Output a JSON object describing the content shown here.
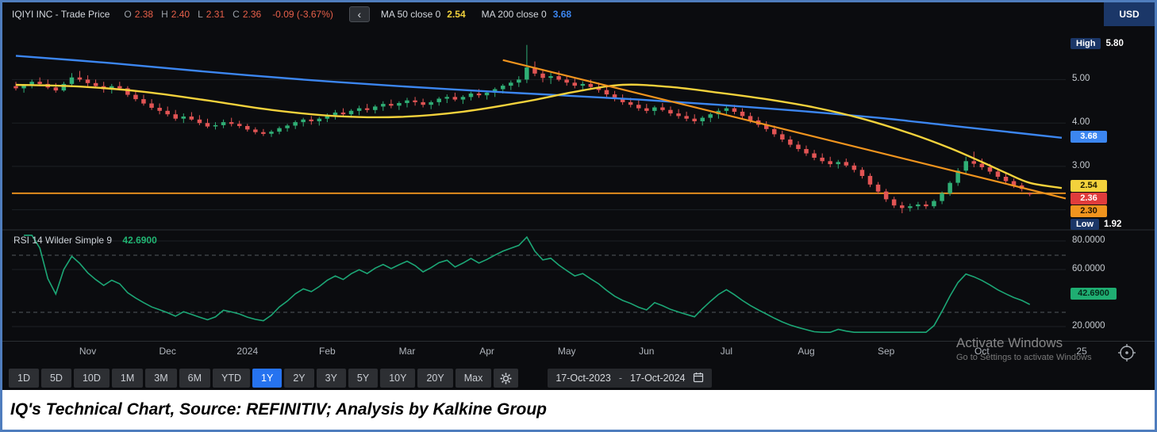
{
  "header": {
    "title": "IQIYI INC - Trade Price",
    "ohlc": {
      "o_label": "O",
      "o": "2.38",
      "h_label": "H",
      "h": "2.40",
      "l_label": "L",
      "l": "2.31",
      "c_label": "C",
      "c": "2.36",
      "change": "-0.09 (-3.67%)"
    },
    "back_chevron": "‹",
    "ma50_label": "MA 50 close 0",
    "ma50_value": "2.54",
    "ma200_label": "MA 200 close 0",
    "ma200_value": "3.68",
    "currency_badge": "USD"
  },
  "price_axis": {
    "high_label": "High",
    "high_text": "5.80",
    "high_value": 5.8,
    "low_label": "Low",
    "low_text": "1.92",
    "low_value": 1.92,
    "ticks": [
      {
        "text": "5.00",
        "value": 5.0
      },
      {
        "text": "4.00",
        "value": 4.0
      },
      {
        "text": "3.00",
        "value": 3.0
      }
    ],
    "badges": [
      {
        "name": "ma200-value-badge",
        "text": "3.68",
        "value": 3.68,
        "bg": "#3c86f0",
        "fg": "#ffffff"
      },
      {
        "name": "ma50-value-badge",
        "text": "2.54",
        "value": 2.54,
        "bg": "#f3d23c",
        "fg": "#1e1a00"
      },
      {
        "name": "last-price-badge",
        "text": "2.36",
        "value": 2.36,
        "bg": "#e03c3c",
        "fg": "#ffffff"
      },
      {
        "name": "trendline-value-badge",
        "text": "2.30",
        "value": 2.3,
        "bg": "#f0941e",
        "fg": "#1e1200"
      }
    ]
  },
  "rsi_panel": {
    "label": "RSI 14 Wilder Simple 9",
    "value": "42.6900",
    "badge": {
      "text": "42.6900",
      "value": 42.69,
      "bg": "#1fae72",
      "fg": "#062a1b"
    },
    "ticks": [
      {
        "text": "80.0000",
        "value": 80
      },
      {
        "text": "60.0000",
        "value": 60
      },
      {
        "text": "20.0000",
        "value": 20
      }
    ]
  },
  "watermark": {
    "line1": "Activate Windows",
    "line2": "Go to Settings to activate Windows"
  },
  "x_axis": {
    "labels": [
      {
        "text": "Nov",
        "i": 9
      },
      {
        "text": "Dec",
        "i": 19
      },
      {
        "text": "2024",
        "i": 29
      },
      {
        "text": "Feb",
        "i": 39
      },
      {
        "text": "Mar",
        "i": 49
      },
      {
        "text": "Apr",
        "i": 59
      },
      {
        "text": "May",
        "i": 69
      },
      {
        "text": "Jun",
        "i": 79
      },
      {
        "text": "Jul",
        "i": 89
      },
      {
        "text": "Aug",
        "i": 99
      },
      {
        "text": "Sep",
        "i": 109
      },
      {
        "text": "Oct",
        "i": 121
      },
      {
        "text": "25",
        "i": 133.5
      }
    ]
  },
  "toolbar": {
    "ranges": [
      "1D",
      "5D",
      "10D",
      "1M",
      "3M",
      "6M",
      "YTD",
      "1Y",
      "2Y",
      "3Y",
      "5Y",
      "10Y",
      "20Y",
      "Max"
    ],
    "selected": "1Y",
    "date_from": "17-Oct-2023",
    "date_separator": "-",
    "date_to": "17-Oct-2024"
  },
  "caption": {
    "text": "IQ's Technical Chart, Source: REFINITIV; Analysis by Kalkine Group"
  },
  "chart_data": {
    "type": "candlestick",
    "title": "IQIYI INC - Trade Price, 1Y daily with MA50, MA200, trendlines and RSI(14)",
    "currency": "USD",
    "ylim": [
      1.7,
      6.05
    ],
    "high": 5.8,
    "low": 1.92,
    "last_ohlc": {
      "open": 2.38,
      "high": 2.4,
      "low": 2.31,
      "close": 2.36,
      "change": -0.09,
      "change_pct": -3.67
    },
    "price_gridlines": [
      5,
      4,
      3,
      2
    ],
    "candles": [
      [
        4.85,
        4.95,
        4.75,
        4.8
      ],
      [
        4.8,
        4.9,
        4.7,
        4.88
      ],
      [
        4.88,
        5.0,
        4.8,
        4.95
      ],
      [
        4.95,
        5.05,
        4.85,
        4.9
      ],
      [
        4.9,
        5.0,
        4.78,
        4.82
      ],
      [
        4.82,
        4.92,
        4.7,
        4.75
      ],
      [
        4.75,
        4.95,
        4.72,
        4.9
      ],
      [
        4.9,
        5.15,
        4.85,
        5.05
      ],
      [
        5.05,
        5.2,
        4.95,
        5.0
      ],
      [
        5.0,
        5.1,
        4.85,
        4.92
      ],
      [
        4.92,
        5.0,
        4.8,
        4.85
      ],
      [
        4.85,
        4.95,
        4.7,
        4.78
      ],
      [
        4.78,
        4.9,
        4.68,
        4.85
      ],
      [
        4.85,
        4.95,
        4.75,
        4.8
      ],
      [
        4.8,
        4.85,
        4.6,
        4.65
      ],
      [
        4.65,
        4.75,
        4.5,
        4.55
      ],
      [
        4.55,
        4.65,
        4.4,
        4.45
      ],
      [
        4.45,
        4.55,
        4.3,
        4.35
      ],
      [
        4.35,
        4.45,
        4.2,
        4.28
      ],
      [
        4.28,
        4.38,
        4.15,
        4.2
      ],
      [
        4.2,
        4.3,
        4.05,
        4.1
      ],
      [
        4.1,
        4.22,
        4.0,
        4.15
      ],
      [
        4.15,
        4.25,
        4.05,
        4.08
      ],
      [
        4.08,
        4.18,
        3.95,
        4.0
      ],
      [
        4.0,
        4.1,
        3.88,
        3.92
      ],
      [
        3.92,
        4.02,
        3.85,
        3.95
      ],
      [
        3.95,
        4.08,
        3.88,
        4.02
      ],
      [
        4.02,
        4.12,
        3.92,
        3.98
      ],
      [
        3.98,
        4.05,
        3.88,
        3.93
      ],
      [
        3.93,
        3.98,
        3.8,
        3.85
      ],
      [
        3.85,
        3.9,
        3.74,
        3.79
      ],
      [
        3.79,
        3.86,
        3.7,
        3.75
      ],
      [
        3.75,
        3.84,
        3.68,
        3.8
      ],
      [
        3.8,
        3.92,
        3.74,
        3.88
      ],
      [
        3.88,
        3.98,
        3.8,
        3.94
      ],
      [
        3.94,
        4.06,
        3.86,
        4.02
      ],
      [
        4.02,
        4.12,
        3.92,
        4.08
      ],
      [
        4.08,
        4.16,
        3.96,
        4.04
      ],
      [
        4.04,
        4.14,
        3.94,
        4.1
      ],
      [
        4.1,
        4.22,
        4.02,
        4.18
      ],
      [
        4.18,
        4.3,
        4.08,
        4.24
      ],
      [
        4.24,
        4.34,
        4.14,
        4.2
      ],
      [
        4.2,
        4.32,
        4.12,
        4.28
      ],
      [
        4.28,
        4.4,
        4.18,
        4.34
      ],
      [
        4.34,
        4.44,
        4.24,
        4.3
      ],
      [
        4.3,
        4.42,
        4.22,
        4.38
      ],
      [
        4.38,
        4.5,
        4.28,
        4.44
      ],
      [
        4.44,
        4.54,
        4.34,
        4.4
      ],
      [
        4.4,
        4.5,
        4.3,
        4.46
      ],
      [
        4.46,
        4.58,
        4.36,
        4.52
      ],
      [
        4.52,
        4.6,
        4.4,
        4.48
      ],
      [
        4.48,
        4.56,
        4.36,
        4.42
      ],
      [
        4.42,
        4.52,
        4.32,
        4.48
      ],
      [
        4.48,
        4.6,
        4.4,
        4.56
      ],
      [
        4.56,
        4.66,
        4.46,
        4.6
      ],
      [
        4.6,
        4.7,
        4.5,
        4.54
      ],
      [
        4.54,
        4.64,
        4.44,
        4.6
      ],
      [
        4.6,
        4.72,
        4.52,
        4.68
      ],
      [
        4.68,
        4.78,
        4.58,
        4.64
      ],
      [
        4.64,
        4.74,
        4.54,
        4.7
      ],
      [
        4.7,
        4.82,
        4.6,
        4.78
      ],
      [
        4.78,
        4.9,
        4.68,
        4.86
      ],
      [
        4.86,
        4.98,
        4.76,
        4.93
      ],
      [
        4.93,
        5.08,
        4.83,
        5.0
      ],
      [
        5.0,
        5.8,
        4.92,
        5.28
      ],
      [
        5.28,
        5.42,
        5.08,
        5.14
      ],
      [
        5.14,
        5.24,
        4.94,
        5.04
      ],
      [
        5.04,
        5.16,
        4.9,
        5.08
      ],
      [
        5.08,
        5.2,
        4.96,
        5.0
      ],
      [
        5.0,
        5.1,
        4.86,
        4.93
      ],
      [
        4.93,
        5.03,
        4.8,
        4.86
      ],
      [
        4.86,
        4.96,
        4.73,
        4.9
      ],
      [
        4.9,
        5.0,
        4.78,
        4.83
      ],
      [
        4.83,
        4.93,
        4.7,
        4.76
      ],
      [
        4.76,
        4.84,
        4.6,
        4.66
      ],
      [
        4.66,
        4.74,
        4.5,
        4.56
      ],
      [
        4.56,
        4.66,
        4.42,
        4.48
      ],
      [
        4.48,
        4.58,
        4.36,
        4.42
      ],
      [
        4.42,
        4.52,
        4.28,
        4.34
      ],
      [
        4.34,
        4.44,
        4.22,
        4.28
      ],
      [
        4.28,
        4.4,
        4.18,
        4.36
      ],
      [
        4.36,
        4.46,
        4.26,
        4.3
      ],
      [
        4.3,
        4.38,
        4.16,
        4.22
      ],
      [
        4.22,
        4.32,
        4.1,
        4.16
      ],
      [
        4.16,
        4.26,
        4.04,
        4.1
      ],
      [
        4.1,
        4.2,
        3.98,
        4.04
      ],
      [
        4.04,
        4.16,
        3.94,
        4.12
      ],
      [
        4.12,
        4.24,
        4.02,
        4.2
      ],
      [
        4.2,
        4.34,
        4.1,
        4.28
      ],
      [
        4.28,
        4.4,
        4.18,
        4.34
      ],
      [
        4.34,
        4.42,
        4.2,
        4.26
      ],
      [
        4.26,
        4.34,
        4.1,
        4.16
      ],
      [
        4.16,
        4.24,
        4.0,
        4.06
      ],
      [
        4.06,
        4.14,
        3.9,
        3.96
      ],
      [
        3.96,
        4.04,
        3.8,
        3.86
      ],
      [
        3.86,
        3.94,
        3.68,
        3.74
      ],
      [
        3.74,
        3.82,
        3.56,
        3.62
      ],
      [
        3.62,
        3.7,
        3.44,
        3.5
      ],
      [
        3.5,
        3.58,
        3.34,
        3.4
      ],
      [
        3.4,
        3.48,
        3.24,
        3.3
      ],
      [
        3.3,
        3.38,
        3.14,
        3.2
      ],
      [
        3.2,
        3.3,
        3.06,
        3.12
      ],
      [
        3.12,
        3.22,
        2.98,
        3.05
      ],
      [
        3.05,
        3.15,
        2.95,
        3.1
      ],
      [
        3.1,
        3.18,
        2.98,
        3.02
      ],
      [
        3.02,
        3.08,
        2.86,
        2.92
      ],
      [
        2.92,
        2.98,
        2.72,
        2.78
      ],
      [
        2.78,
        2.84,
        2.52,
        2.58
      ],
      [
        2.58,
        2.64,
        2.36,
        2.42
      ],
      [
        2.42,
        2.48,
        2.18,
        2.24
      ],
      [
        2.24,
        2.3,
        2.04,
        2.1
      ],
      [
        2.1,
        2.18,
        1.92,
        2.04
      ],
      [
        2.04,
        2.14,
        1.96,
        2.08
      ],
      [
        2.08,
        2.18,
        2.0,
        2.12
      ],
      [
        2.12,
        2.2,
        2.02,
        2.08
      ],
      [
        2.08,
        2.24,
        2.03,
        2.2
      ],
      [
        2.2,
        2.42,
        2.13,
        2.38
      ],
      [
        2.38,
        2.66,
        2.32,
        2.62
      ],
      [
        2.62,
        2.96,
        2.55,
        2.9
      ],
      [
        2.9,
        3.22,
        2.83,
        3.12
      ],
      [
        3.12,
        3.34,
        2.98,
        3.06
      ],
      [
        3.06,
        3.18,
        2.92,
        2.98
      ],
      [
        2.98,
        3.06,
        2.82,
        2.88
      ],
      [
        2.88,
        2.96,
        2.7,
        2.76
      ],
      [
        2.76,
        2.84,
        2.6,
        2.66
      ],
      [
        2.66,
        2.72,
        2.5,
        2.56
      ],
      [
        2.56,
        2.62,
        2.42,
        2.48
      ],
      [
        2.38,
        2.4,
        2.31,
        2.36
      ]
    ],
    "overlays": {
      "ma50_points": [
        [
          0,
          4.88
        ],
        [
          8,
          4.84
        ],
        [
          16,
          4.72
        ],
        [
          24,
          4.52
        ],
        [
          32,
          4.3
        ],
        [
          40,
          4.16
        ],
        [
          48,
          4.14
        ],
        [
          56,
          4.26
        ],
        [
          64,
          4.5
        ],
        [
          70,
          4.72
        ],
        [
          76,
          4.88
        ],
        [
          82,
          4.83
        ],
        [
          88,
          4.7
        ],
        [
          94,
          4.55
        ],
        [
          100,
          4.36
        ],
        [
          106,
          4.1
        ],
        [
          112,
          3.76
        ],
        [
          117,
          3.42
        ],
        [
          121,
          3.1
        ],
        [
          124,
          2.85
        ],
        [
          127,
          2.62
        ],
        [
          131,
          2.5
        ]
      ],
      "ma200_points": [
        [
          0,
          5.55
        ],
        [
          12,
          5.38
        ],
        [
          24,
          5.18
        ],
        [
          36,
          5.0
        ],
        [
          48,
          4.85
        ],
        [
          58,
          4.74
        ],
        [
          68,
          4.64
        ],
        [
          78,
          4.54
        ],
        [
          88,
          4.42
        ],
        [
          98,
          4.28
        ],
        [
          108,
          4.12
        ],
        [
          116,
          3.96
        ],
        [
          124,
          3.8
        ],
        [
          131,
          3.66
        ]
      ],
      "trendline": {
        "from": [
          61,
          5.45
        ],
        "to": [
          131.5,
          2.26
        ]
      },
      "horizontal_line": 2.38
    },
    "rsi": {
      "period": 14,
      "smoothing": "wilder-simple-9",
      "last": 42.69,
      "range": [
        15,
        85
      ],
      "dashed_levels": [
        70,
        30
      ],
      "solid_levels": [
        80,
        60,
        20
      ]
    },
    "colors": {
      "up": "#2fae75",
      "down": "#e15454",
      "ma50": "#f3d23c",
      "ma200": "#3c86f0",
      "trend": "#f0941e",
      "rsi": "#1ca776"
    }
  }
}
